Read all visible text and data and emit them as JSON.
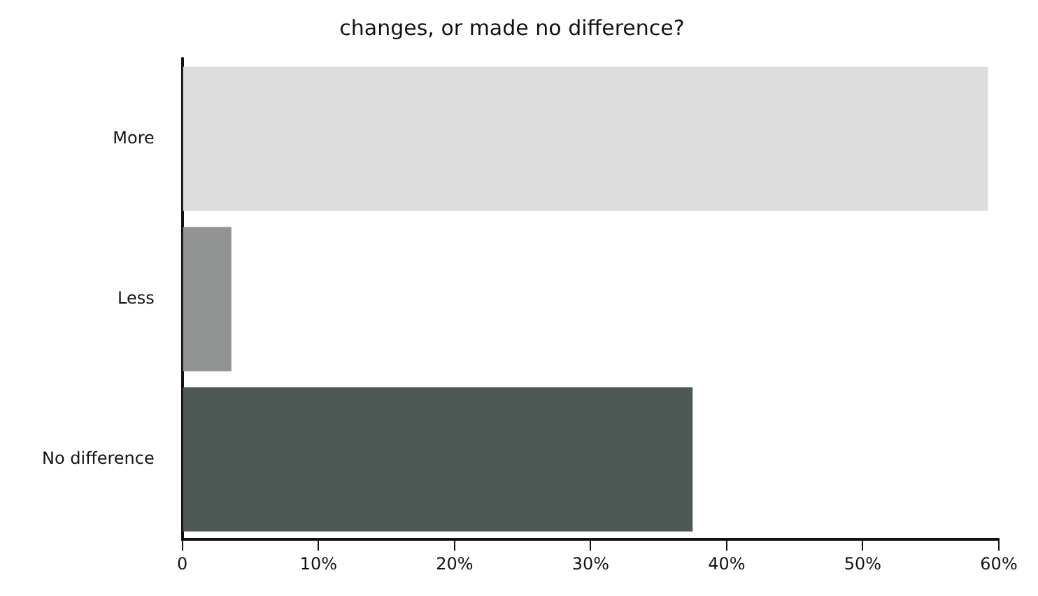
{
  "chart_data": {
    "type": "bar",
    "orientation": "horizontal",
    "title": "changes, or made no difference?",
    "categories": [
      "More",
      "Less",
      "No difference"
    ],
    "values": [
      59.2,
      3.6,
      37.5
    ],
    "colors": [
      "#dcdddc",
      "#919492",
      "#4e5854"
    ],
    "xlim": [
      0,
      60
    ],
    "xticks": [
      {
        "value": 0,
        "label": "0"
      },
      {
        "value": 10,
        "label": "10%"
      },
      {
        "value": 20,
        "label": "20%"
      },
      {
        "value": 30,
        "label": "30%"
      },
      {
        "value": 40,
        "label": "40%"
      },
      {
        "value": 50,
        "label": "50%"
      },
      {
        "value": 60,
        "label": "60%"
      }
    ],
    "grid": false,
    "legend": false
  }
}
